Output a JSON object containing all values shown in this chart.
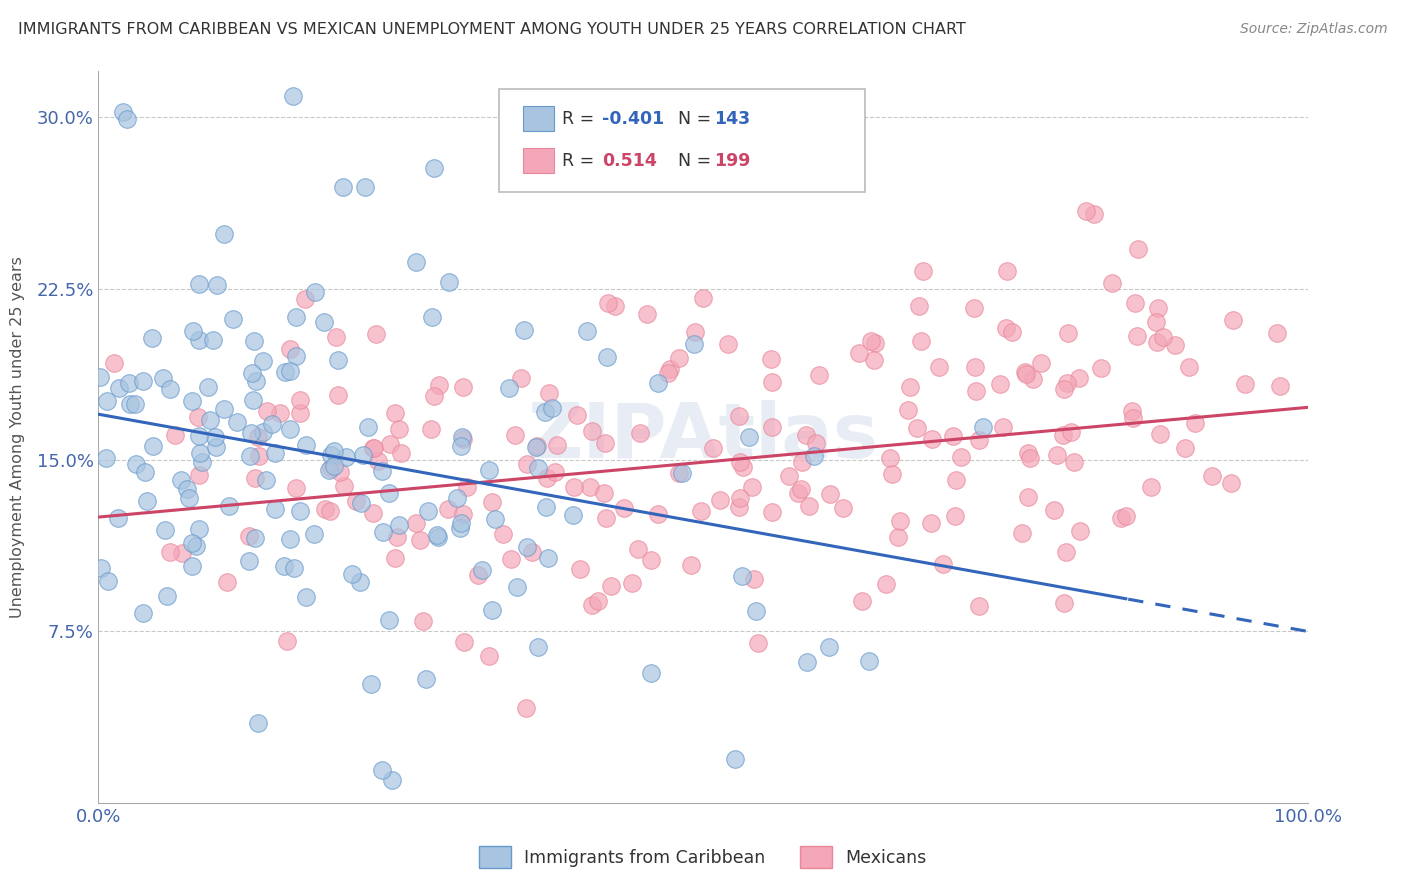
{
  "title": "IMMIGRANTS FROM CARIBBEAN VS MEXICAN UNEMPLOYMENT AMONG YOUTH UNDER 25 YEARS CORRELATION CHART",
  "source": "Source: ZipAtlas.com",
  "ylabel": "Unemployment Among Youth under 25 years",
  "xlim": [
    0,
    100
  ],
  "ylim": [
    0,
    32
  ],
  "ytick_vals": [
    0,
    7.5,
    15.0,
    22.5,
    30.0
  ],
  "ytick_labels": [
    "",
    "7.5%",
    "15.0%",
    "22.5%",
    "30.0%"
  ],
  "xtick_vals": [
    0,
    100
  ],
  "xtick_labels": [
    "0.0%",
    "100.0%"
  ],
  "color_caribbean": "#a8c4e0",
  "color_caribbean_edge": "#6699cc",
  "color_mexican": "#f4a7b9",
  "color_mexican_edge": "#e8889a",
  "color_caribbean_line": "#3366bb",
  "color_mexican_line": "#cc4466",
  "color_title": "#333333",
  "color_source": "#888888",
  "color_axis_labels": "#4466aa",
  "color_grid": "#bbbbbb",
  "watermark": "ZIPAtlas",
  "legend_r1_pre": "R = ",
  "legend_r1_val": "-0.401",
  "legend_n1_pre": "  N = ",
  "legend_n1_val": "143",
  "legend_r2_pre": "R =  ",
  "legend_r2_val": "0.514",
  "legend_n2_pre": "  N = ",
  "legend_n2_val": "199",
  "carib_line_intercept": 17.0,
  "carib_line_slope": -0.095,
  "mex_line_intercept": 12.5,
  "mex_line_slope": 0.048,
  "dash_cutoff": 85
}
